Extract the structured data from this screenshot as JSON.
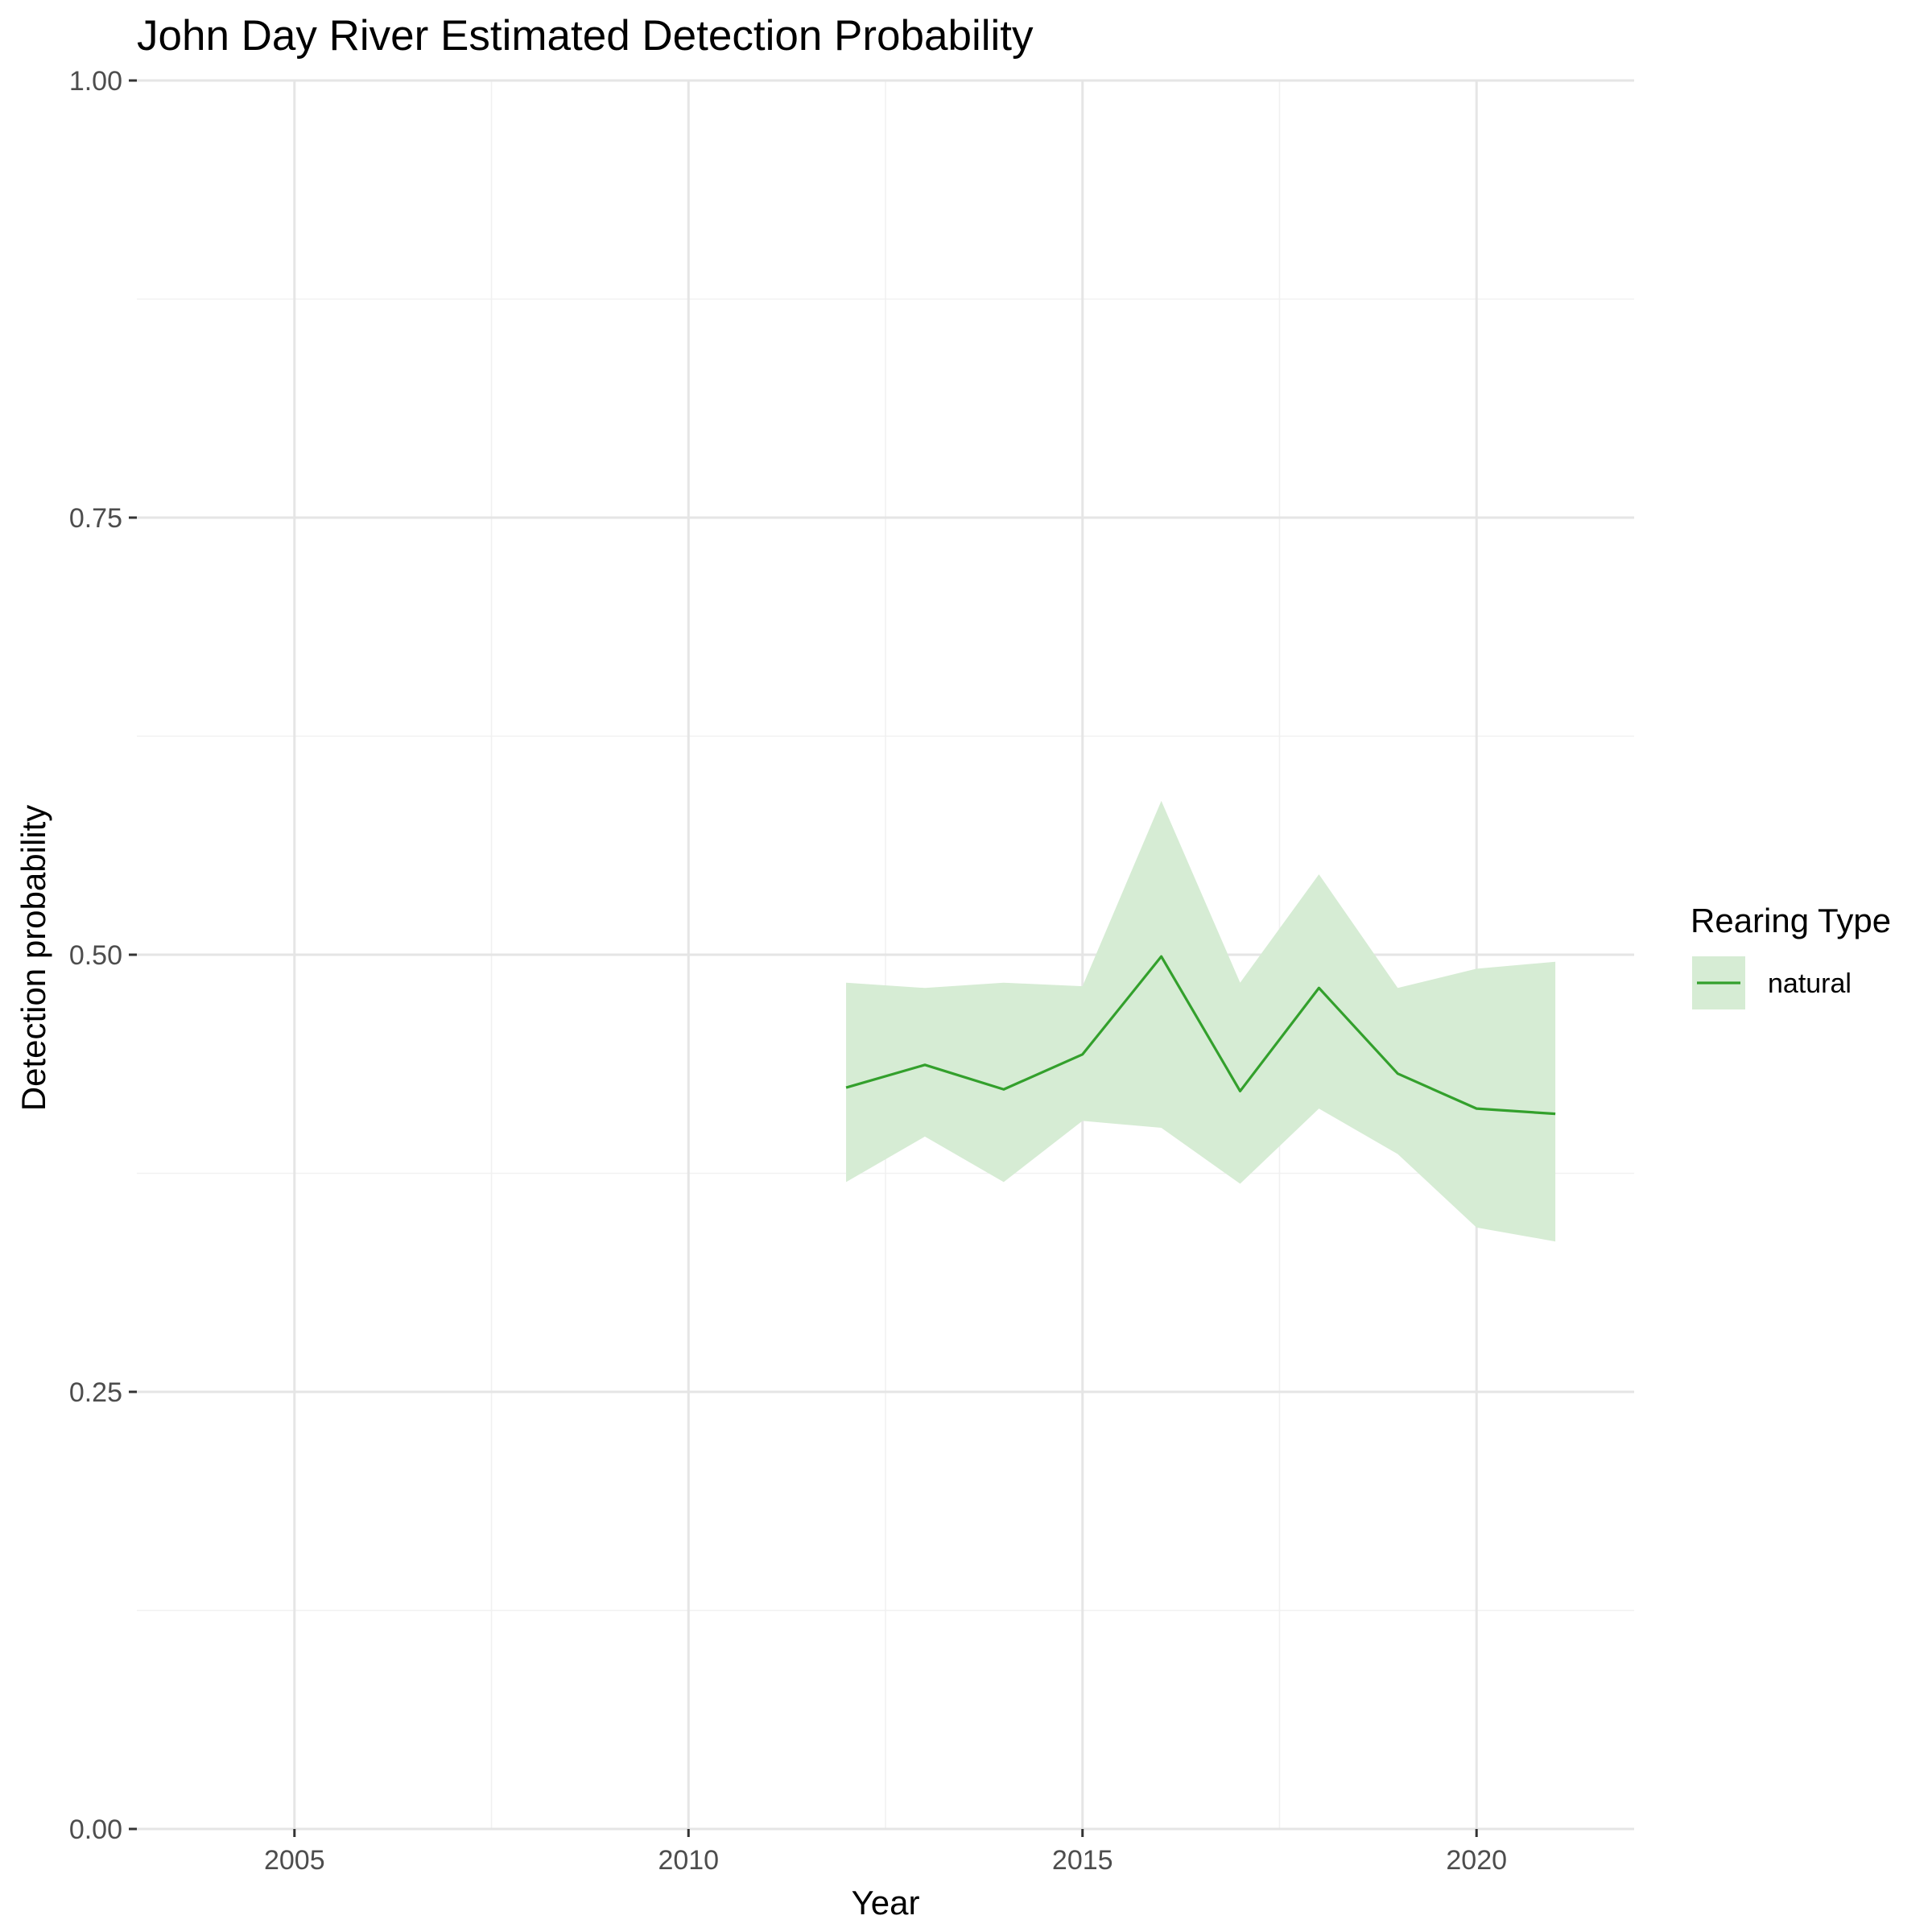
{
  "chart_data": {
    "type": "line",
    "title": "John Day River Estimated Detection Probability",
    "xlabel": "Year",
    "ylabel": "Detection probability",
    "xlim": [
      2003,
      2022
    ],
    "ylim": [
      0,
      1
    ],
    "x_ticks": [
      2005,
      2010,
      2015,
      2020
    ],
    "x_tick_labels": [
      "2005",
      "2010",
      "2015",
      "2020"
    ],
    "y_ticks": [
      0,
      0.25,
      0.5,
      0.75,
      1
    ],
    "y_tick_labels": [
      "0.00",
      "0.25",
      "0.50",
      "0.75",
      "1.00"
    ],
    "grid": true,
    "legend": {
      "title": "Rearing Type",
      "position": "right"
    },
    "series": [
      {
        "name": "natural",
        "color": "#33a02c",
        "ribbon_color": "#d6ecd4",
        "x": [
          2012,
          2013,
          2014,
          2015,
          2016,
          2017,
          2018,
          2019,
          2020,
          2021
        ],
        "values": [
          0.424,
          0.437,
          0.423,
          0.443,
          0.499,
          0.422,
          0.481,
          0.432,
          0.412,
          0.409
        ],
        "lower": [
          0.37,
          0.396,
          0.37,
          0.405,
          0.401,
          0.369,
          0.412,
          0.386,
          0.344,
          0.336
        ],
        "upper": [
          0.484,
          0.481,
          0.484,
          0.482,
          0.588,
          0.484,
          0.546,
          0.481,
          0.492,
          0.496
        ]
      }
    ]
  }
}
